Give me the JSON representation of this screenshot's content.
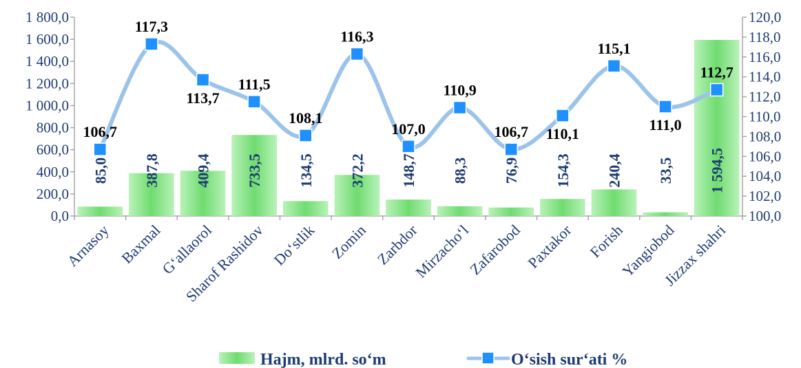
{
  "chart_data": {
    "type": "bar",
    "title": "",
    "categories": [
      "Arnasoy",
      "Baxmal",
      "G‘allaorol",
      "Sharof Rashidov",
      "Do‘stlik",
      "Zomin",
      "Zarbdor",
      "Mirzacho‘l",
      "Zafarobod",
      "Paxtakor",
      "Forish",
      "Yangiobod",
      "Jizzax shahri"
    ],
    "series": [
      {
        "name": "Hajm, mlrd. so‘m",
        "type": "bar",
        "axis": "left",
        "color": "#7ee07e",
        "values": [
          85.0,
          387.8,
          409.4,
          733.5,
          134.5,
          372.2,
          148.7,
          88.3,
          76.9,
          154.3,
          240.4,
          33.5,
          1594.5
        ],
        "labels": [
          "85,0",
          "387,8",
          "409,4",
          "733,5",
          "134,5",
          "372,2",
          "148,7",
          "88,3",
          "76,9",
          "154,3",
          "240,4",
          "33,5",
          "1 594,5"
        ]
      },
      {
        "name": "O‘sish sur‘ati %",
        "type": "line",
        "axis": "right",
        "color": "#9cc3ea",
        "marker_color": "#1e90ff",
        "values": [
          106.7,
          117.3,
          113.7,
          111.5,
          108.1,
          116.3,
          107.0,
          110.9,
          106.7,
          110.1,
          115.1,
          111.0,
          112.7
        ],
        "labels": [
          "106,7",
          "117,3",
          "113,7",
          "111,5",
          "108,1",
          "116,3",
          "107,0",
          "110,9",
          "106,7",
          "110,1",
          "115,1",
          "111,0",
          "112,7"
        ]
      }
    ],
    "y_left": {
      "ylim": [
        0,
        1800
      ],
      "ticks": [
        "0,0",
        "200,0",
        "400,0",
        "600,0",
        "800,0",
        "1 000,0",
        "1 200,0",
        "1 400,0",
        "1 600,0",
        "1 800,0"
      ]
    },
    "y_right": {
      "ylim": [
        100,
        120
      ],
      "ticks": [
        "100,0",
        "102,0",
        "104,0",
        "106,0",
        "108,0",
        "110,0",
        "112,0",
        "114,0",
        "116,0",
        "118,0",
        "120,0"
      ]
    },
    "grid": false,
    "legend_position": "bottom"
  }
}
